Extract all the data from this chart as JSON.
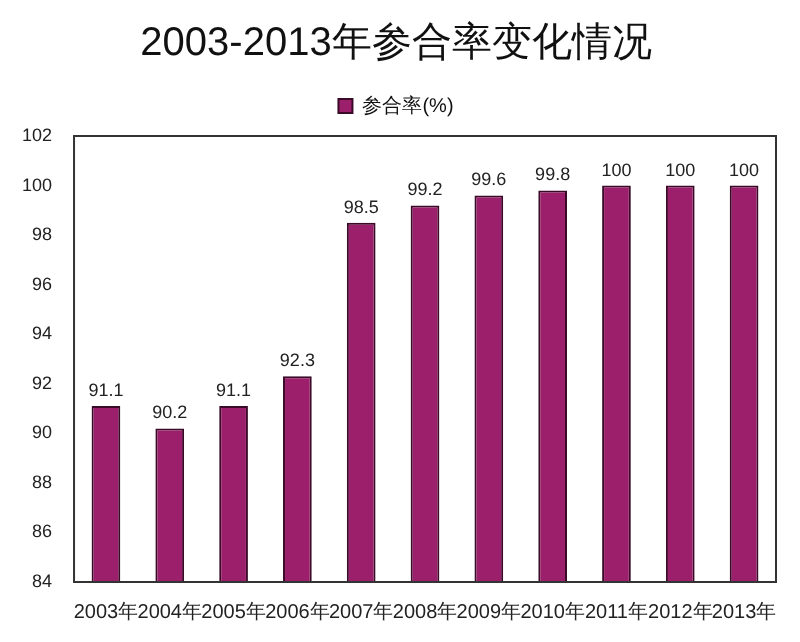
{
  "chart_data": {
    "type": "bar",
    "title": "2003-2013年参合率变化情况",
    "categories": [
      "2003年",
      "2004年",
      "2005年",
      "2006年",
      "2007年",
      "2008年",
      "2009年",
      "2010年",
      "2011年",
      "2012年",
      "2013年"
    ],
    "series": [
      {
        "name": "参合率(%)",
        "color": "#9b1f6a",
        "values": [
          91.1,
          90.2,
          91.1,
          92.3,
          98.5,
          99.2,
          99.6,
          99.8,
          100,
          100,
          100
        ]
      }
    ],
    "ylim": [
      84,
      102
    ],
    "yticks": [
      84,
      86,
      88,
      90,
      92,
      94,
      96,
      98,
      100,
      102
    ],
    "grid": false,
    "legend": "top",
    "data_labels": true
  }
}
